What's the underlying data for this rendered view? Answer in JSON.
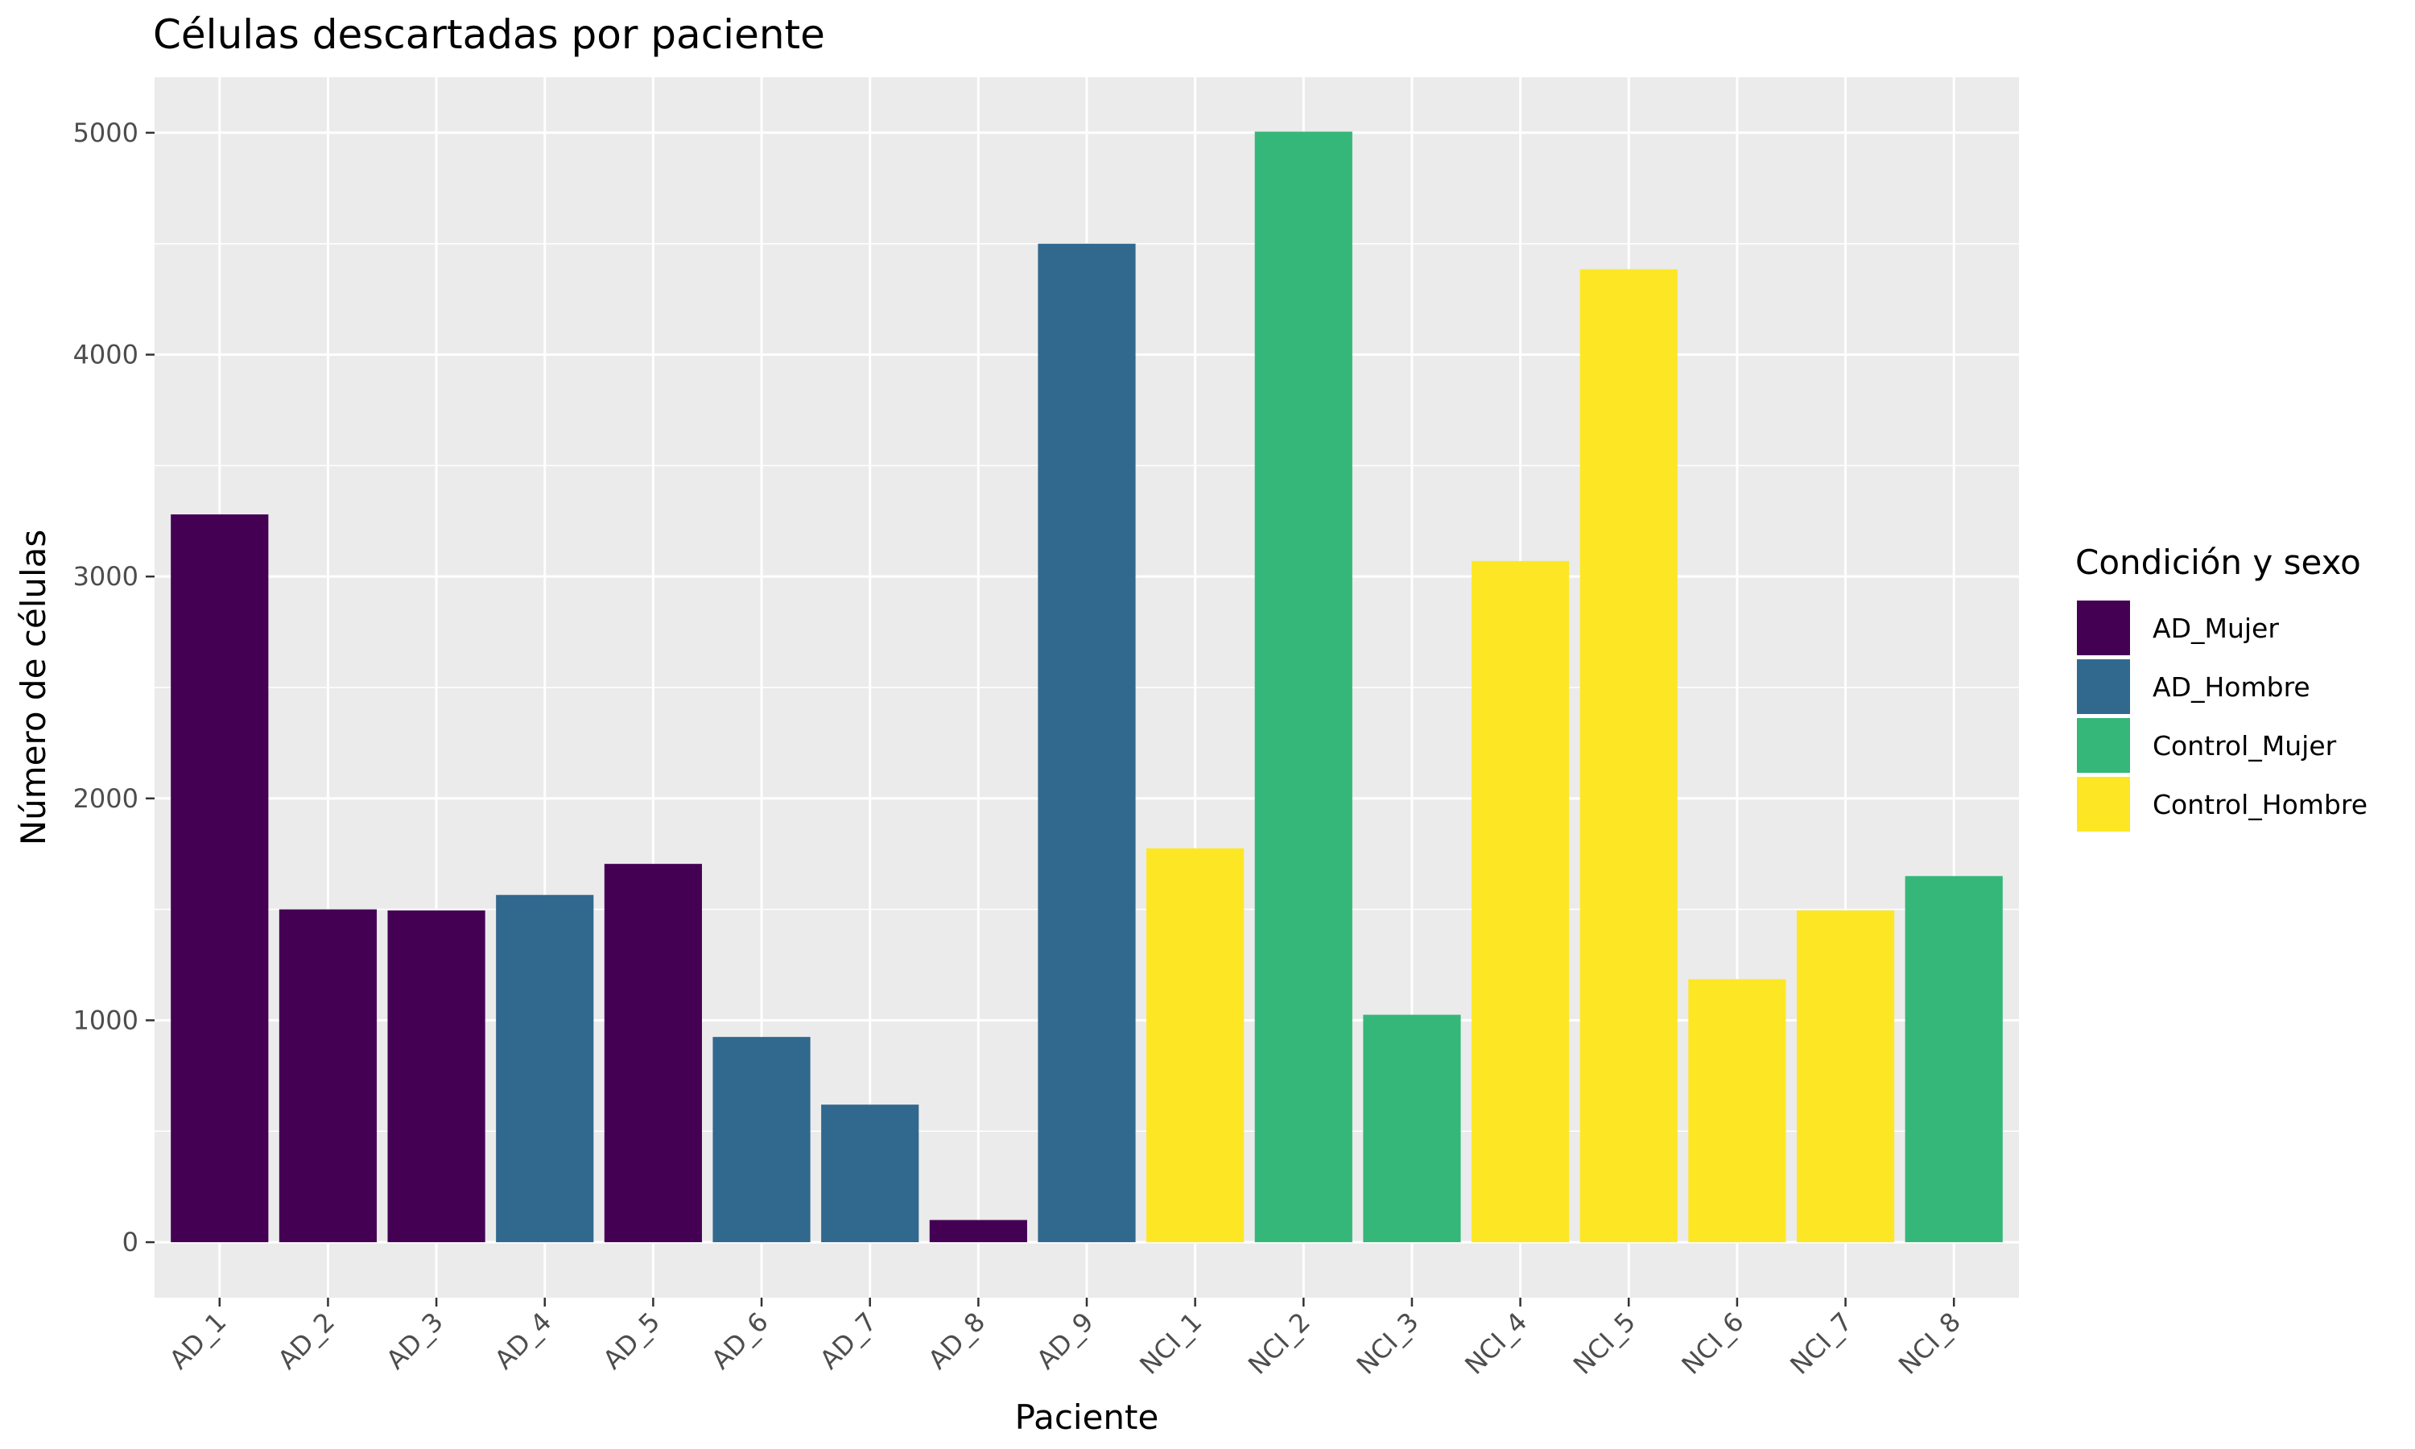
{
  "chart_data": {
    "type": "bar",
    "title": "Células descartadas por paciente",
    "xlabel": "Paciente",
    "ylabel": "Número de células",
    "ylim": [
      -250,
      5250
    ],
    "yticks": [
      0,
      1000,
      2000,
      3000,
      4000,
      5000
    ],
    "grid": true,
    "legend_position": "right",
    "legend": {
      "title": "Condición y sexo",
      "entries": [
        {
          "label": "AD_Mujer",
          "color": "#440154"
        },
        {
          "label": "AD_Hombre",
          "color": "#31688E"
        },
        {
          "label": "Control_Mujer",
          "color": "#35B779"
        },
        {
          "label": "Control_Hombre",
          "color": "#FDE725"
        }
      ]
    },
    "categories": [
      "AD_1",
      "AD_2",
      "AD_3",
      "AD_4",
      "AD_5",
      "AD_6",
      "AD_7",
      "AD_8",
      "AD_9",
      "NCI_1",
      "NCI_2",
      "NCI_3",
      "NCI_4",
      "NCI_5",
      "NCI_6",
      "NCI_7",
      "NCI_8"
    ],
    "values": [
      3280,
      1500,
      1495,
      1565,
      1705,
      925,
      620,
      100,
      4500,
      1775,
      5005,
      1025,
      3070,
      4385,
      1185,
      1495,
      1650
    ],
    "groups": [
      "AD_Mujer",
      "AD_Mujer",
      "AD_Mujer",
      "AD_Hombre",
      "AD_Mujer",
      "AD_Hombre",
      "AD_Hombre",
      "AD_Mujer",
      "AD_Hombre",
      "Control_Hombre",
      "Control_Mujer",
      "Control_Mujer",
      "Control_Hombre",
      "Control_Hombre",
      "Control_Hombre",
      "Control_Hombre",
      "Control_Mujer"
    ],
    "panel_background": "#EBEBEB",
    "gridline_color": "#FFFFFF"
  }
}
